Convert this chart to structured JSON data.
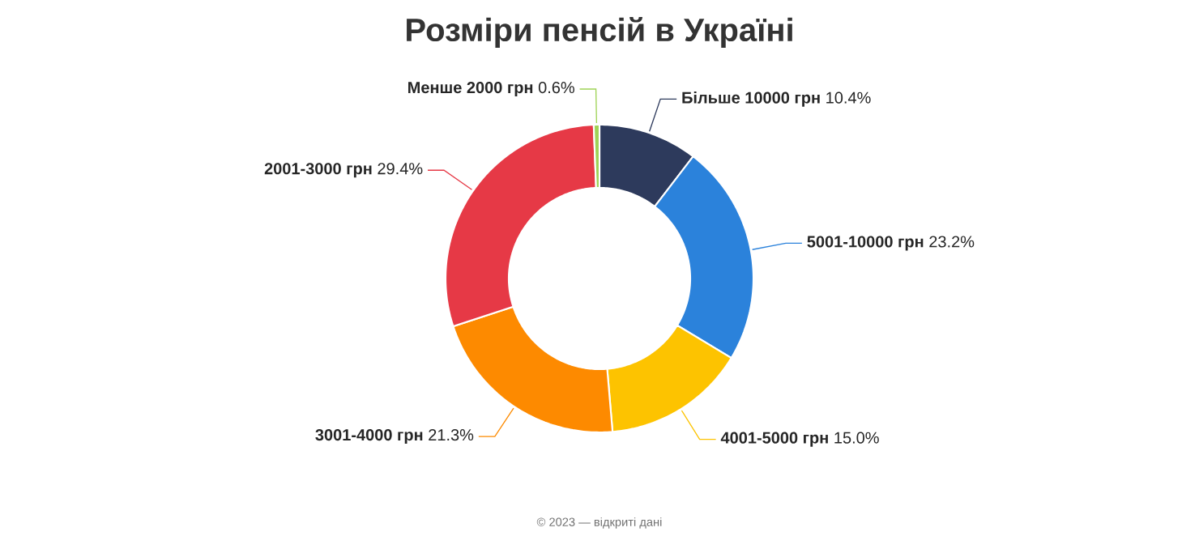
{
  "chart_data": {
    "type": "donut",
    "title": "Розміри пенсій в Україні",
    "categories": [
      "Більше 10000 грн",
      "5001-10000 грн",
      "4001-5000 грн",
      "3001-4000 грн",
      "2001-3000 грн",
      "Менше 2000 грн"
    ],
    "values": [
      10.4,
      23.2,
      15.0,
      21.3,
      29.4,
      0.6
    ],
    "value_labels": [
      "10.4%",
      "23.2%",
      "15.0%",
      "21.3%",
      "29.4%",
      "0.6%"
    ],
    "colors": [
      "#2d3a5c",
      "#2b82db",
      "#fdc300",
      "#fd8a00",
      "#e63946",
      "#9fd356"
    ],
    "annotations": [
      "© 2023 — відкриті дані"
    ]
  }
}
